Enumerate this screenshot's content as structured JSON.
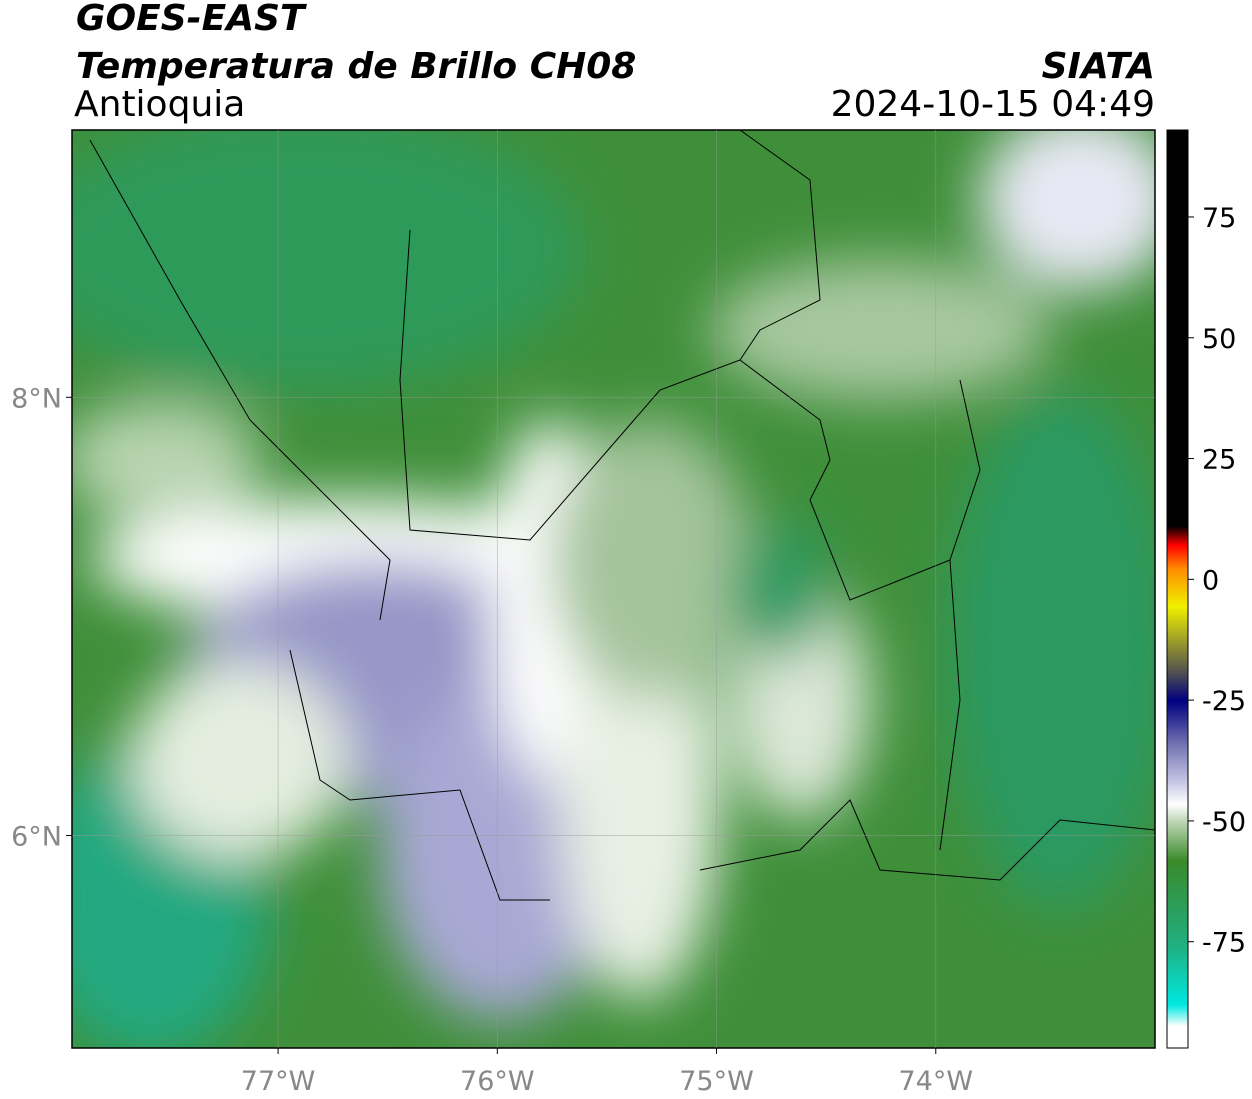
{
  "header": {
    "title": "GOES-EAST",
    "subtitle": "Temperatura de Brillo CH08",
    "region": "Antioquia",
    "source": "SIATA",
    "datetime": "2024-10-15 04:49"
  },
  "map": {
    "xlim": [
      -77.94,
      -73.0
    ],
    "ylim": [
      5.03,
      9.22
    ],
    "xticks": [
      {
        "value": -77,
        "label": "77°W"
      },
      {
        "value": -76,
        "label": "76°W"
      },
      {
        "value": -75,
        "label": "75°W"
      },
      {
        "value": -74,
        "label": "74°W"
      }
    ],
    "yticks": [
      {
        "value": 6,
        "label": "6°N"
      },
      {
        "value": 8,
        "label": "8°N"
      }
    ],
    "grid": true
  },
  "colorbar": {
    "lim": [
      -97,
      93
    ],
    "ticks": [
      -75,
      -50,
      -25,
      0,
      25,
      50,
      75
    ],
    "stops": [
      {
        "value": -97,
        "color": "#ffffff"
      },
      {
        "value": -92.5,
        "color": "#00e8e0"
      },
      {
        "value": -80,
        "color": "#20b080"
      },
      {
        "value": -62,
        "color": "#3a8a2a"
      },
      {
        "value": -53,
        "color": "#c8dcc0"
      },
      {
        "value": -50,
        "color": "#ffffff"
      },
      {
        "value": -45,
        "color": "#c4c4e4"
      },
      {
        "value": -37,
        "color": "#7070b0"
      },
      {
        "value": -28,
        "color": "#000080"
      },
      {
        "value": -22,
        "color": "#505050"
      },
      {
        "value": -8,
        "color": "#f0f000"
      },
      {
        "value": 0,
        "color": "#ff8c00"
      },
      {
        "value": 5,
        "color": "#ff0000"
      },
      {
        "value": 9,
        "color": "#000000"
      }
    ]
  }
}
